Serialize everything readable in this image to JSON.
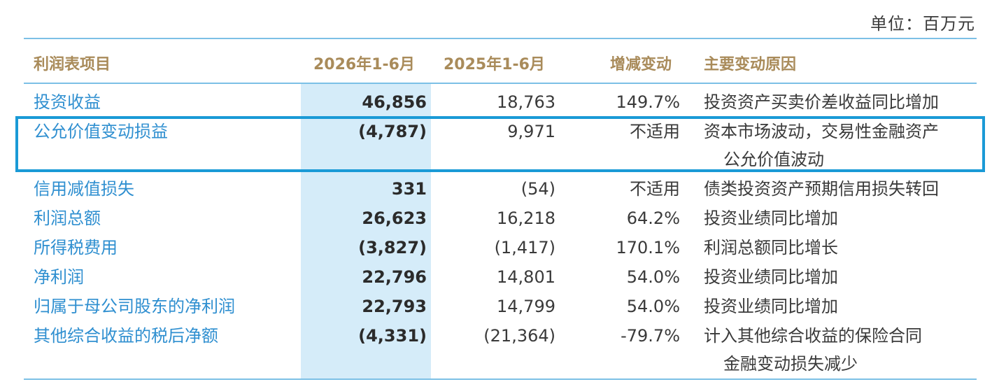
{
  "unit_label": "单位：百万元",
  "headers": {
    "item": "利润表项目",
    "current": "2026年1-6月",
    "previous": "2025年1-6月",
    "change": "增减变动",
    "reason": "主要变动原因"
  },
  "rows": [
    {
      "item": "投资收益",
      "current": "46,856",
      "previous": "18,763",
      "change": "149.7%",
      "reason": "投资资产买卖价差收益同比增加",
      "reason2": ""
    },
    {
      "item": "公允价值变动损益",
      "current": "(4,787)",
      "previous": "9,971",
      "change": "不适用",
      "reason": "资本市场波动，交易性金融资产",
      "reason2": "公允价值波动"
    },
    {
      "item": "信用减值损失",
      "current": "331",
      "previous": "(54)",
      "change": "不适用",
      "reason": "债类投资资产预期信用损失转回",
      "reason2": ""
    },
    {
      "item": "利润总额",
      "current": "26,623",
      "previous": "16,218",
      "change": "64.2%",
      "reason": "投资业绩同比增加",
      "reason2": ""
    },
    {
      "item": "所得税费用",
      "current": "(3,827)",
      "previous": "(1,417)",
      "change": "170.1%",
      "reason": "利润总额同比增长",
      "reason2": ""
    },
    {
      "item": "净利润",
      "current": "22,796",
      "previous": "14,801",
      "change": "54.0%",
      "reason": "投资业绩同比增加",
      "reason2": ""
    },
    {
      "item": "归属于母公司股东的净利润",
      "current": "22,793",
      "previous": "14,799",
      "change": "54.0%",
      "reason": "投资业绩同比增加",
      "reason2": ""
    },
    {
      "item": "其他综合收益的税后净额",
      "current": "(4,331)",
      "previous": "(21,364)",
      "change": "-79.7%",
      "reason": "计入其他综合收益的保险合同",
      "reason2": "金融变动损失减少"
    }
  ],
  "colors": {
    "rule": "#7cc0e6",
    "highlight_column": "#d5ecf9",
    "header_text": "#a98b5a",
    "item_text": "#2f8fd0",
    "selection_border": "#1a9ad6"
  }
}
